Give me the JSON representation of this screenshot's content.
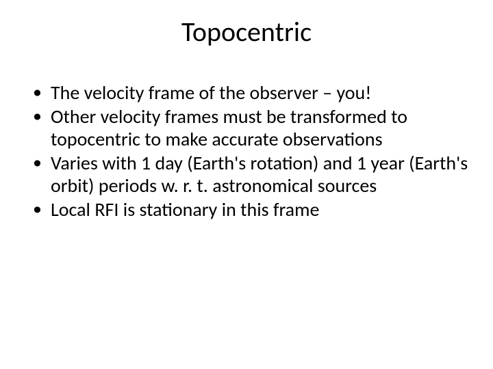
{
  "slide": {
    "title": "Topocentric",
    "title_fontsize": 40,
    "title_color": "#000000",
    "body_fontsize": 28,
    "body_color": "#000000",
    "background_color": "#ffffff",
    "bullets": [
      "The velocity frame of the observer – you!",
      "Other velocity frames must be transformed to topocentric to make accurate observations",
      "Varies with 1 day (Earth's rotation) and 1 year (Earth's orbit) periods w. r. t. astronomical sources",
      "Local RFI is stationary in this frame"
    ]
  }
}
